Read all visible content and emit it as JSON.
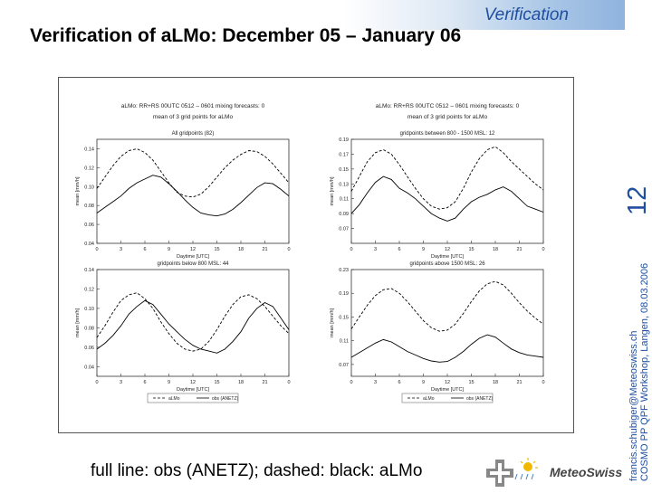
{
  "header": {
    "section_label": "Verification",
    "title": "Verification of aLMo: December 05 – January 06"
  },
  "side": {
    "page_number": "12",
    "email": "francis.schubiger@Meteoswiss.ch",
    "workshop": "COSMO PP QPF Workshop, Langen, 08.03.2006"
  },
  "caption": "full line: obs (ANETZ); dashed: black: aLMo",
  "logo": {
    "name": "MeteoSwiss"
  },
  "colors": {
    "accent": "#1f4fa0"
  },
  "chart_data": [
    {
      "type": "line",
      "title": "aLMo: RR+RS 00UTC 0512 – 0601 mixing forecasts: 0",
      "subtitle": "mean of 3 grid points for aLMo",
      "panel_label": "All gridpoints (82)",
      "xlabel": "Daytime [UTC]",
      "ylabel": "mean [mm/h]",
      "x_ticks": [
        "0",
        "3",
        "6",
        "9",
        "12",
        "15",
        "18",
        "21",
        "0"
      ],
      "y_ticks": [
        "0.04",
        "0.06",
        "0.08",
        "0.10",
        "0.12",
        "0.14"
      ],
      "ylim": [
        0.04,
        0.15
      ],
      "x": [
        0,
        1,
        2,
        3,
        4,
        5,
        6,
        7,
        8,
        9,
        10,
        11,
        12,
        13,
        14,
        15,
        16,
        17,
        18,
        19,
        20,
        21,
        22,
        23,
        24
      ],
      "series": [
        {
          "name": "obs (ANETZ)",
          "style": "solid",
          "values": [
            0.072,
            0.078,
            0.084,
            0.09,
            0.098,
            0.104,
            0.108,
            0.112,
            0.11,
            0.103,
            0.095,
            0.086,
            0.078,
            0.072,
            0.07,
            0.069,
            0.071,
            0.076,
            0.083,
            0.091,
            0.099,
            0.104,
            0.103,
            0.097,
            0.09
          ]
        },
        {
          "name": "aLMo",
          "style": "dashed",
          "values": [
            0.098,
            0.11,
            0.122,
            0.132,
            0.138,
            0.14,
            0.136,
            0.128,
            0.116,
            0.104,
            0.094,
            0.09,
            0.089,
            0.092,
            0.1,
            0.11,
            0.12,
            0.128,
            0.134,
            0.138,
            0.137,
            0.132,
            0.124,
            0.114,
            0.104
          ]
        }
      ]
    },
    {
      "type": "line",
      "title": "aLMo: RR+RS 00UTC 0512 – 0601 mixing forecasts: 0",
      "subtitle": "mean of 3 grid points for aLMo",
      "panel_label": "gridpoints between 800 - 1500 MSL: 12",
      "xlabel": "Daytime [UTC]",
      "ylabel": "mean [mm/h]",
      "x_ticks": [
        "0",
        "3",
        "6",
        "9",
        "12",
        "15",
        "18",
        "21",
        "0"
      ],
      "y_ticks": [
        "0.07",
        "0.09",
        "0.11",
        "0.13",
        "0.15",
        "0.17",
        "0.19"
      ],
      "ylim": [
        0.05,
        0.19
      ],
      "x": [
        0,
        1,
        2,
        3,
        4,
        5,
        6,
        7,
        8,
        9,
        10,
        11,
        12,
        13,
        14,
        15,
        16,
        17,
        18,
        19,
        20,
        21,
        22,
        23,
        24
      ],
      "series": [
        {
          "name": "obs (ANETZ)",
          "style": "solid",
          "values": [
            0.09,
            0.102,
            0.118,
            0.132,
            0.14,
            0.136,
            0.124,
            0.118,
            0.11,
            0.1,
            0.09,
            0.084,
            0.08,
            0.084,
            0.096,
            0.106,
            0.112,
            0.116,
            0.122,
            0.126,
            0.12,
            0.11,
            0.1,
            0.096,
            0.092
          ]
        },
        {
          "name": "aLMo",
          "style": "dashed",
          "values": [
            0.12,
            0.14,
            0.16,
            0.172,
            0.176,
            0.17,
            0.156,
            0.14,
            0.124,
            0.11,
            0.1,
            0.096,
            0.098,
            0.106,
            0.124,
            0.146,
            0.164,
            0.176,
            0.18,
            0.172,
            0.16,
            0.15,
            0.14,
            0.13,
            0.122
          ]
        }
      ]
    },
    {
      "type": "line",
      "title": "",
      "subtitle": "",
      "panel_label": "gridpoints below 800 MSL: 44",
      "xlabel": "Daytime [UTC]",
      "ylabel": "mean [mm/h]",
      "x_ticks": [
        "0",
        "3",
        "6",
        "9",
        "12",
        "15",
        "18",
        "21",
        "0"
      ],
      "y_ticks": [
        "0.04",
        "0.06",
        "0.08",
        "0.10",
        "0.12",
        "0.14"
      ],
      "ylim": [
        0.03,
        0.14
      ],
      "x": [
        0,
        1,
        2,
        3,
        4,
        5,
        6,
        7,
        8,
        9,
        10,
        11,
        12,
        13,
        14,
        15,
        16,
        17,
        18,
        19,
        20,
        21,
        22,
        23,
        24
      ],
      "legend": [
        "aLMo",
        "obs (ANETZ)"
      ],
      "series": [
        {
          "name": "obs (ANETZ)",
          "style": "solid",
          "values": [
            0.058,
            0.064,
            0.072,
            0.082,
            0.094,
            0.102,
            0.108,
            0.104,
            0.094,
            0.084,
            0.076,
            0.068,
            0.062,
            0.058,
            0.056,
            0.054,
            0.058,
            0.066,
            0.076,
            0.09,
            0.1,
            0.106,
            0.102,
            0.09,
            0.078
          ]
        },
        {
          "name": "aLMo",
          "style": "dashed",
          "values": [
            0.07,
            0.082,
            0.096,
            0.108,
            0.114,
            0.116,
            0.11,
            0.1,
            0.086,
            0.074,
            0.064,
            0.058,
            0.056,
            0.058,
            0.066,
            0.078,
            0.092,
            0.104,
            0.112,
            0.114,
            0.11,
            0.102,
            0.092,
            0.082,
            0.074
          ]
        }
      ]
    },
    {
      "type": "line",
      "title": "",
      "subtitle": "",
      "panel_label": "gridpoints above 1500 MSL: 26",
      "xlabel": "Daytime [UTC]",
      "ylabel": "mean [mm/h]",
      "x_ticks": [
        "0",
        "3",
        "6",
        "9",
        "12",
        "15",
        "18",
        "21",
        "0"
      ],
      "y_ticks": [
        "0.07",
        "0.11",
        "0.15",
        "0.19",
        "0.23"
      ],
      "ylim": [
        0.05,
        0.23
      ],
      "x": [
        0,
        1,
        2,
        3,
        4,
        5,
        6,
        7,
        8,
        9,
        10,
        11,
        12,
        13,
        14,
        15,
        16,
        17,
        18,
        19,
        20,
        21,
        22,
        23,
        24
      ],
      "legend": [
        "aLMo",
        "obs (ANETZ)"
      ],
      "series": [
        {
          "name": "obs (ANETZ)",
          "style": "solid",
          "values": [
            0.082,
            0.09,
            0.098,
            0.106,
            0.112,
            0.108,
            0.1,
            0.092,
            0.086,
            0.08,
            0.076,
            0.074,
            0.075,
            0.082,
            0.092,
            0.104,
            0.114,
            0.12,
            0.116,
            0.106,
            0.096,
            0.09,
            0.086,
            0.084,
            0.082
          ]
        },
        {
          "name": "aLMo",
          "style": "dashed",
          "values": [
            0.13,
            0.15,
            0.17,
            0.186,
            0.196,
            0.198,
            0.19,
            0.176,
            0.16,
            0.144,
            0.132,
            0.126,
            0.128,
            0.138,
            0.156,
            0.176,
            0.194,
            0.206,
            0.21,
            0.204,
            0.19,
            0.174,
            0.16,
            0.148,
            0.138
          ]
        }
      ]
    }
  ]
}
